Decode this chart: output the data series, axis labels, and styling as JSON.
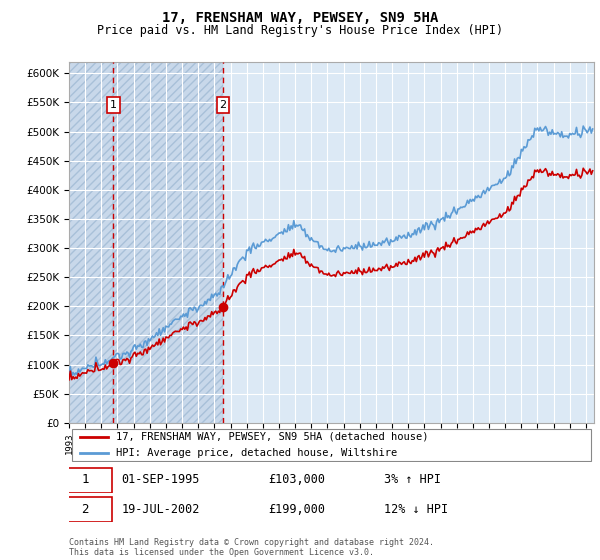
{
  "title": "17, FRENSHAM WAY, PEWSEY, SN9 5HA",
  "subtitle": "Price paid vs. HM Land Registry's House Price Index (HPI)",
  "legend_line1": "17, FRENSHAM WAY, PEWSEY, SN9 5HA (detached house)",
  "legend_line2": "HPI: Average price, detached house, Wiltshire",
  "annotation1_date": "01-SEP-1995",
  "annotation1_price": "£103,000",
  "annotation1_hpi": "3% ↑ HPI",
  "annotation2_date": "19-JUL-2002",
  "annotation2_price": "£199,000",
  "annotation2_hpi": "12% ↓ HPI",
  "footnote": "Contains HM Land Registry data © Crown copyright and database right 2024.\nThis data is licensed under the Open Government Licence v3.0.",
  "sale1_year": 1995.75,
  "sale1_price": 103000,
  "sale2_year": 2002.54,
  "sale2_price": 199000,
  "hpi_color": "#5b9bd5",
  "price_color": "#cc0000",
  "ylim_min": 0,
  "ylim_max": 620000,
  "xlim_min": 1993,
  "xlim_max": 2025.5,
  "plot_bg_color": "#dce9f5",
  "hatch_bg_color": "#c8d8ea",
  "grid_color": "#ffffff"
}
